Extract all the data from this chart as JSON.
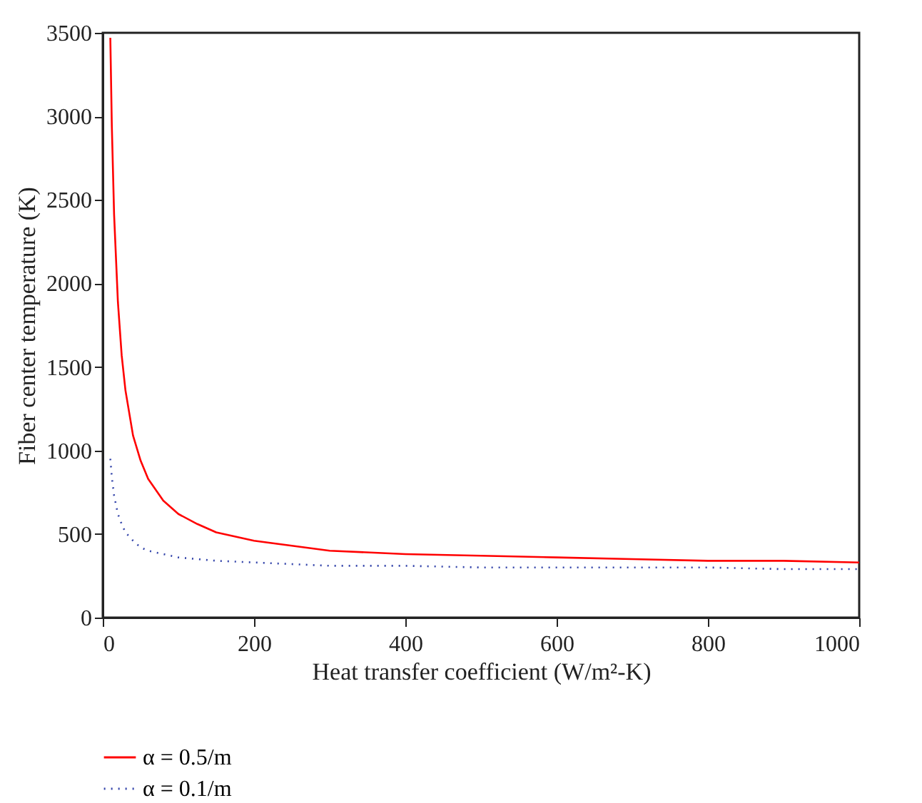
{
  "chart_data": {
    "type": "line",
    "xlabel": "Heat transfer coefficient (W/m²-K)",
    "ylabel": "Fiber center temperature (K)",
    "x": [
      10,
      12,
      15,
      20,
      25,
      30,
      40,
      50,
      60,
      80,
      100,
      125,
      150,
      200,
      250,
      300,
      400,
      500,
      600,
      700,
      800,
      900,
      1000
    ],
    "series": [
      {
        "name": "α = 0.5/m",
        "color": "#ff0000",
        "line_style": "solid",
        "values": [
          3470,
          2940,
          2410,
          1890,
          1570,
          1360,
          1090,
          940,
          830,
          700,
          620,
          560,
          510,
          460,
          430,
          400,
          380,
          370,
          360,
          350,
          340,
          340,
          330
        ]
      },
      {
        "name": "α = 0.1/m",
        "color": "#3344aa",
        "line_style": "dotted",
        "values": [
          950,
          840,
          730,
          620,
          560,
          510,
          460,
          420,
          400,
          380,
          360,
          350,
          340,
          330,
          320,
          310,
          310,
          300,
          300,
          300,
          300,
          290,
          290
        ]
      }
    ],
    "xlim": [
      0,
      1000
    ],
    "xticks": [
      0,
      200,
      400,
      600,
      800,
      1000
    ],
    "ylim": [
      0,
      3500
    ],
    "yticks": [
      0,
      500,
      1000,
      1500,
      2000,
      2500,
      3000,
      3500
    ],
    "grid": false,
    "legend": "bottom",
    "marker": "none"
  }
}
